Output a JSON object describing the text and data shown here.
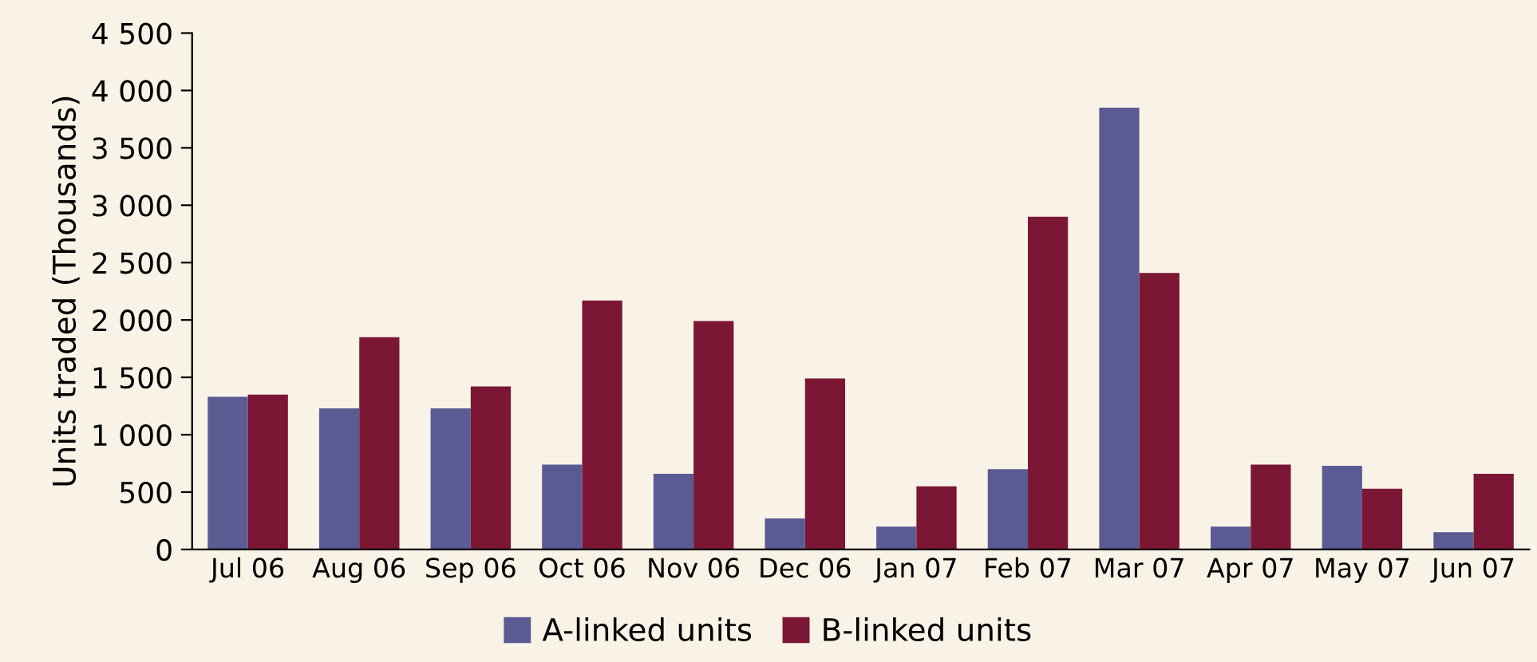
{
  "chart_data": {
    "type": "bar",
    "ylabel": "Units traded (Thousands)",
    "categories": [
      "Jul 06",
      "Aug 06",
      "Sep 06",
      "Oct 06",
      "Nov 06",
      "Dec 06",
      "Jan 07",
      "Feb 07",
      "Mar 07",
      "Apr 07",
      "May 07",
      "Jun 07"
    ],
    "series": [
      {
        "name": "A-linked units",
        "color": "#5b5b94",
        "values": [
          1330,
          1230,
          1230,
          740,
          660,
          270,
          200,
          700,
          3850,
          200,
          730,
          150
        ]
      },
      {
        "name": "B-linked units",
        "color": "#7b1734",
        "values": [
          1350,
          1850,
          1420,
          2170,
          1990,
          1490,
          550,
          2900,
          2410,
          740,
          530,
          660
        ]
      }
    ],
    "ylim": [
      0,
      4500
    ],
    "yticks": [
      0,
      500,
      {
        "value": 1000,
        "label": "1 000"
      },
      {
        "value": 1500,
        "label": "1 500"
      },
      {
        "value": 2000,
        "label": "2 000"
      },
      {
        "value": 2500,
        "label": "2 500"
      },
      {
        "value": 3000,
        "label": "3 000"
      },
      {
        "value": 3500,
        "label": "3 500"
      },
      {
        "value": 4000,
        "label": "4 000"
      },
      {
        "value": 4500,
        "label": "4 500"
      }
    ],
    "grid": false,
    "legend": "bottom"
  }
}
